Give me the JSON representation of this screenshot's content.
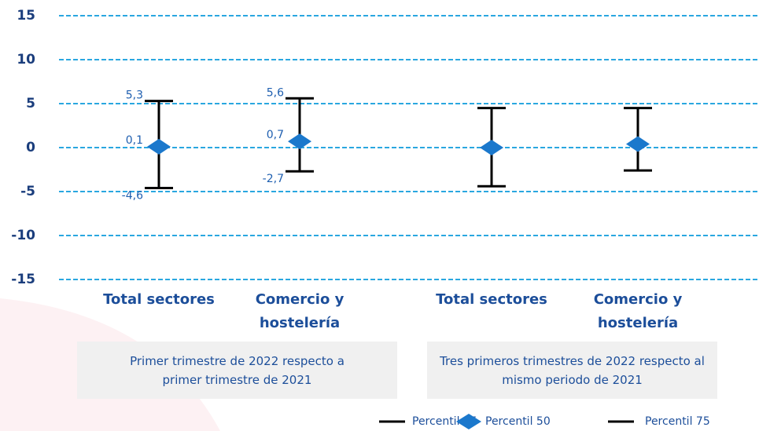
{
  "chart_data": {
    "type": "errorbar",
    "categories": [
      "Total sectores",
      "Comercio y hostelería",
      "Total sectores",
      "Comercio y hostelería"
    ],
    "groups": [
      {
        "label": "Primer trimestre de 2022 respecto a primer trimestre de 2021",
        "categories": [
          0,
          1
        ]
      },
      {
        "label": "Tres primeros trimestres de 2022 respecto al mismo periodo de 2021",
        "categories": [
          2,
          3
        ]
      }
    ],
    "series": [
      {
        "name": "Percentil 25",
        "color": "#000000",
        "values": [
          -4.6,
          -2.7,
          -4.4,
          -2.6
        ],
        "value_labels": [
          "-4,6",
          "-2,7",
          null,
          null
        ]
      },
      {
        "name": "Percentil 50",
        "color": "#1b78cc",
        "values": [
          0.1,
          0.7,
          0.0,
          0.4
        ],
        "value_labels": [
          "0,1",
          "0,7",
          null,
          null
        ]
      },
      {
        "name": "Percentil 75",
        "color": "#000000",
        "values": [
          5.3,
          5.6,
          4.5,
          4.5
        ],
        "value_labels": [
          "5,3",
          "5,6",
          null,
          null
        ]
      }
    ],
    "ylim": [
      -15,
      15
    ],
    "yticks": [
      -15,
      -10,
      -5,
      0,
      5,
      10,
      15
    ],
    "grid": true,
    "grid_color": "#2aa7e0",
    "legend": "bottom-right"
  }
}
